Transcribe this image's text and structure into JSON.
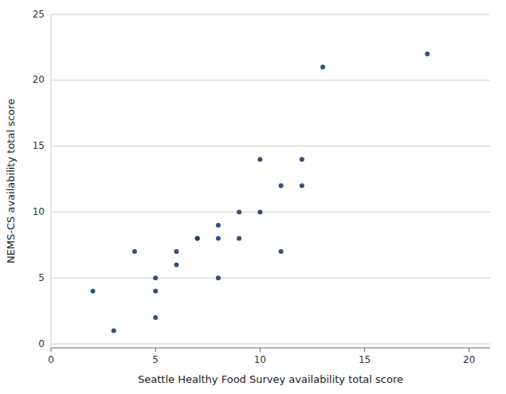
{
  "chart_data": {
    "type": "scatter",
    "x": [
      2,
      3,
      4,
      5,
      5,
      5,
      6,
      6,
      7,
      7,
      8,
      8,
      8,
      9,
      9,
      10,
      10,
      11,
      11,
      12,
      12,
      13,
      18
    ],
    "values": [
      4,
      1,
      7,
      5,
      4,
      2,
      7,
      6,
      8,
      8,
      9,
      8,
      5,
      10,
      8,
      14,
      10,
      12,
      7,
      14,
      12,
      21,
      22
    ],
    "color": "#1f3d6b",
    "xlabel": "Seattle Healthy Food Survey availability total score",
    "ylabel": "NEMS-CS availability total score",
    "xlim": [
      0,
      21
    ],
    "ylim": [
      -0.3,
      25
    ],
    "xticks": [
      0,
      5,
      10,
      15,
      20
    ],
    "yticks": [
      0,
      5,
      10,
      15,
      20,
      25
    ],
    "grid": "y"
  }
}
